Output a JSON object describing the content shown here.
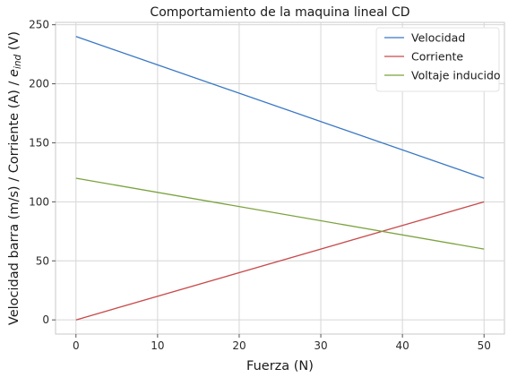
{
  "chart_data": {
    "type": "line",
    "title": "Comportamiento de la maquina lineal CD",
    "xlabel": "Fuerza (N)",
    "ylabel": {
      "prefix": "Velocidad barra (m/s) / Corriente (A) / ",
      "symbol": "e",
      "subscript": "ind",
      "suffix": " (V)"
    },
    "xlim": [
      -2.5,
      52.5
    ],
    "ylim": [
      -12,
      252
    ],
    "xticks": [
      0,
      10,
      20,
      30,
      40,
      50
    ],
    "yticks": [
      0,
      50,
      100,
      150,
      200,
      250
    ],
    "grid": true,
    "legend_position": "top-right",
    "series": [
      {
        "name": "Velocidad",
        "color": "#3a78c4",
        "x": [
          0,
          50
        ],
        "y": [
          240,
          120
        ]
      },
      {
        "name": "Corriente",
        "color": "#c8494a",
        "x": [
          0,
          50
        ],
        "y": [
          0,
          100
        ]
      },
      {
        "name": "Voltaje inducido",
        "color": "#7ba23f",
        "x": [
          0,
          50
        ],
        "y": [
          120,
          60
        ]
      }
    ]
  }
}
